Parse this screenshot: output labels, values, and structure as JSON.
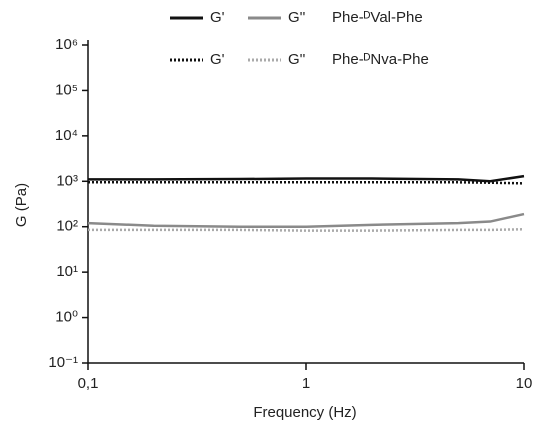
{
  "chart_data": {
    "type": "line",
    "x_label": "Frequency (Hz)",
    "y_label": "G (Pa)",
    "log_x": true,
    "log_y": true,
    "x": [
      0.1,
      0.2,
      0.5,
      1,
      2,
      5,
      7,
      10
    ],
    "xlim": [
      0.1,
      10
    ],
    "xticks": [
      {
        "value": 0.1,
        "label": "0,1"
      },
      1,
      10
    ],
    "ylim": [
      0.1,
      1000000
    ],
    "yticks": [
      {
        "value": 0.1,
        "label": "10⁻¹"
      },
      {
        "value": 1,
        "label": "10⁰"
      },
      {
        "value": 10,
        "label": "10¹"
      },
      {
        "value": 100,
        "label": "10²"
      },
      {
        "value": 1000,
        "label": "10³"
      },
      {
        "value": 10000,
        "label": "10⁴"
      },
      {
        "value": 100000,
        "label": "10⁵"
      },
      {
        "value": 1000000,
        "label": "10⁶"
      }
    ],
    "legend_groups": [
      "Phe-ᴰVal-Phe",
      "Phe-ᴰNva-Phe"
    ],
    "series": [
      {
        "name": "G'",
        "group": 0,
        "color": "#111111",
        "dash": "solid",
        "values": [
          1100,
          1100,
          1120,
          1150,
          1150,
          1100,
          1000,
          1300
        ]
      },
      {
        "name": "G''",
        "group": 0,
        "color": "#8a8a8a",
        "dash": "solid",
        "values": [
          120,
          105,
          100,
          100,
          110,
          120,
          130,
          190
        ]
      },
      {
        "name": "G'",
        "group": 1,
        "color": "#111111",
        "dash": "dotted",
        "values": [
          950,
          950,
          950,
          950,
          950,
          950,
          930,
          900
        ]
      },
      {
        "name": "G''",
        "group": 1,
        "color": "#aaaaaa",
        "dash": "dotted",
        "values": [
          85,
          85,
          85,
          82,
          82,
          85,
          85,
          88
        ]
      }
    ]
  }
}
